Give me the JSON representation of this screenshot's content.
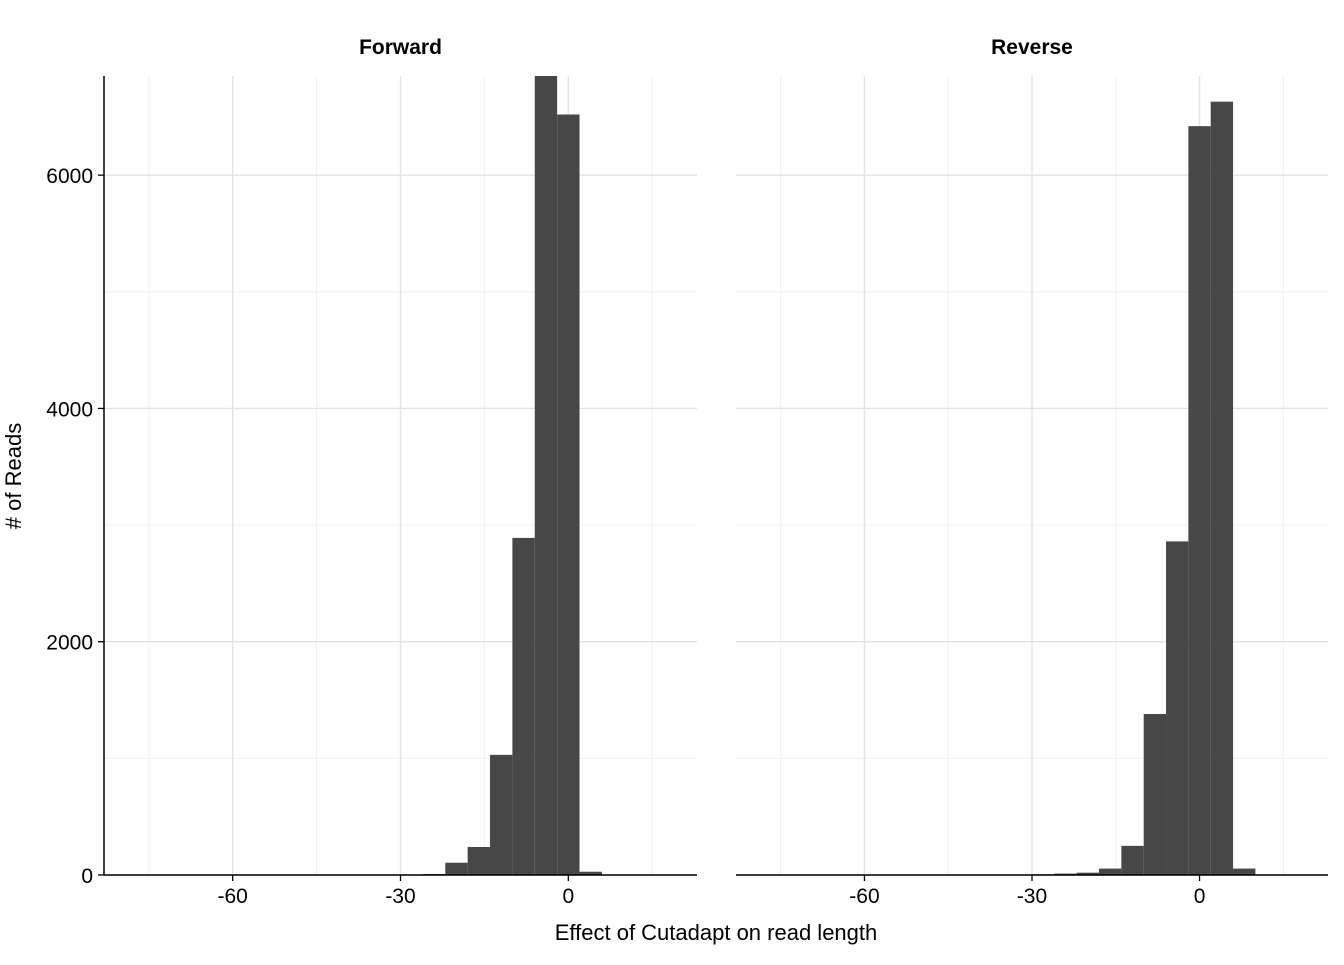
{
  "chart_data": {
    "type": "bar",
    "subtype": "faceted-histogram",
    "xlabel": "Effect of Cutadapt on read length",
    "ylabel": "# of Reads",
    "xlim": [
      -83,
      23
    ],
    "ylim": [
      0,
      6850
    ],
    "x_ticks": [
      -60,
      -30,
      0
    ],
    "x_tick_labels": [
      "-60",
      "-30",
      "0"
    ],
    "y_ticks": [
      0,
      2000,
      4000,
      6000
    ],
    "y_tick_labels": [
      "0",
      "2000",
      "4000",
      "6000"
    ],
    "grid": true,
    "bar_color": "#474747",
    "legend": "none",
    "panels": [
      {
        "title": "Forward",
        "bins": [
          {
            "x0": -26,
            "x1": -22,
            "count": 8
          },
          {
            "x0": -22,
            "x1": -18,
            "count": 105
          },
          {
            "x0": -18,
            "x1": -14,
            "count": 240
          },
          {
            "x0": -14,
            "x1": -10,
            "count": 1030
          },
          {
            "x0": -10,
            "x1": -6,
            "count": 2890
          },
          {
            "x0": -6,
            "x1": -2,
            "count": 6860
          },
          {
            "x0": -2,
            "x1": 2,
            "count": 6520
          },
          {
            "x0": 2,
            "x1": 6,
            "count": 28
          }
        ]
      },
      {
        "title": "Reverse",
        "bins": [
          {
            "x0": -30,
            "x1": -26,
            "count": 6
          },
          {
            "x0": -26,
            "x1": -22,
            "count": 12
          },
          {
            "x0": -22,
            "x1": -18,
            "count": 20
          },
          {
            "x0": -18,
            "x1": -14,
            "count": 55
          },
          {
            "x0": -14,
            "x1": -10,
            "count": 250
          },
          {
            "x0": -10,
            "x1": -6,
            "count": 1380
          },
          {
            "x0": -6,
            "x1": -2,
            "count": 2860
          },
          {
            "x0": -2,
            "x1": 2,
            "count": 6420
          },
          {
            "x0": 2,
            "x1": 6,
            "count": 6630
          },
          {
            "x0": 6,
            "x1": 10,
            "count": 55
          }
        ]
      }
    ]
  }
}
